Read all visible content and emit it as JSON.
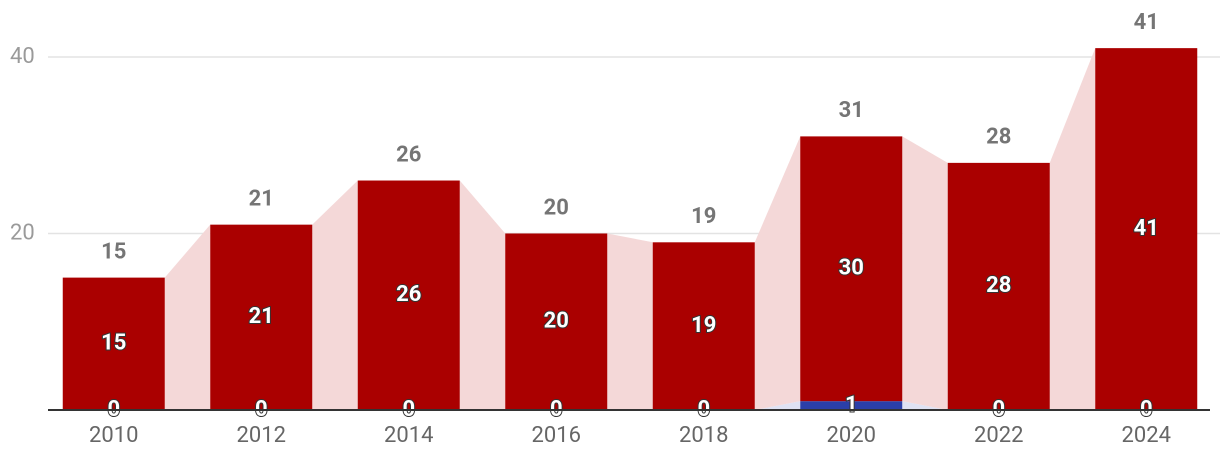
{
  "chart_data": {
    "type": "stacked-bar",
    "categories": [
      "2010",
      "2012",
      "2014",
      "2016",
      "2018",
      "2020",
      "2022",
      "2024"
    ],
    "series": [
      {
        "color": "#2b3fa8",
        "connector_color": "#dfe2f3",
        "values": [
          0,
          0,
          0,
          0,
          0,
          1,
          0,
          0
        ]
      },
      {
        "color": "#aa0000",
        "connector_color": "#f4d8d8",
        "values": [
          15,
          21,
          26,
          20,
          19,
          30,
          28,
          41
        ]
      }
    ],
    "totals": [
      15,
      21,
      26,
      20,
      19,
      31,
      28,
      41
    ],
    "ylim": [
      0,
      46
    ],
    "yticks": [
      20,
      40
    ],
    "grid": true
  }
}
